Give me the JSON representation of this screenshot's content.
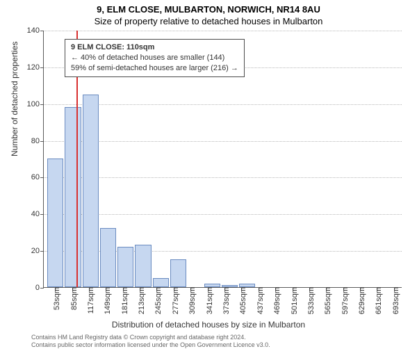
{
  "chart": {
    "type": "bar",
    "title": "9, ELM CLOSE, MULBARTON, NORWICH, NR14 8AU",
    "subtitle": "Size of property relative to detached houses in Mulbarton",
    "ylabel": "Number of detached properties",
    "xlabel": "Distribution of detached houses by size in Mulbarton",
    "ylim": [
      0,
      140
    ],
    "ytick_step": 20,
    "yticks": [
      0,
      20,
      40,
      60,
      80,
      100,
      120,
      140
    ],
    "categories": [
      "53sqm",
      "85sqm",
      "117sqm",
      "149sqm",
      "181sqm",
      "213sqm",
      "245sqm",
      "277sqm",
      "309sqm",
      "341sqm",
      "373sqm",
      "405sqm",
      "437sqm",
      "469sqm",
      "501sqm",
      "533sqm",
      "565sqm",
      "597sqm",
      "629sqm",
      "661sqm",
      "693sqm"
    ],
    "values": [
      70,
      98,
      105,
      32,
      22,
      23,
      5,
      15,
      0,
      2,
      1,
      2,
      0,
      0,
      0,
      0,
      0,
      0,
      0,
      0,
      0
    ],
    "bar_fill": "#c6d7f0",
    "bar_border": "#6a8bc0",
    "grid_color": "#b8b8b8",
    "axis_color": "#5a5a5a",
    "background_color": "#ffffff",
    "title_fontsize": 13,
    "label_fontsize": 12,
    "tick_fontsize": 11,
    "redline": {
      "position_value": 110,
      "color": "#d93030",
      "width": 2
    },
    "annotation": {
      "line1": "9 ELM CLOSE: 110sqm",
      "line2": "← 40% of detached houses are smaller (144)",
      "line3": "59% of semi-detached houses are larger (216) →",
      "border_color": "#4a4a4a",
      "bg_color": "#ffffff",
      "fontsize": 11
    }
  },
  "footer": {
    "line1": "Contains HM Land Registry data © Crown copyright and database right 2024.",
    "line2": "Contains public sector information licensed under the Open Government Licence v3.0."
  }
}
